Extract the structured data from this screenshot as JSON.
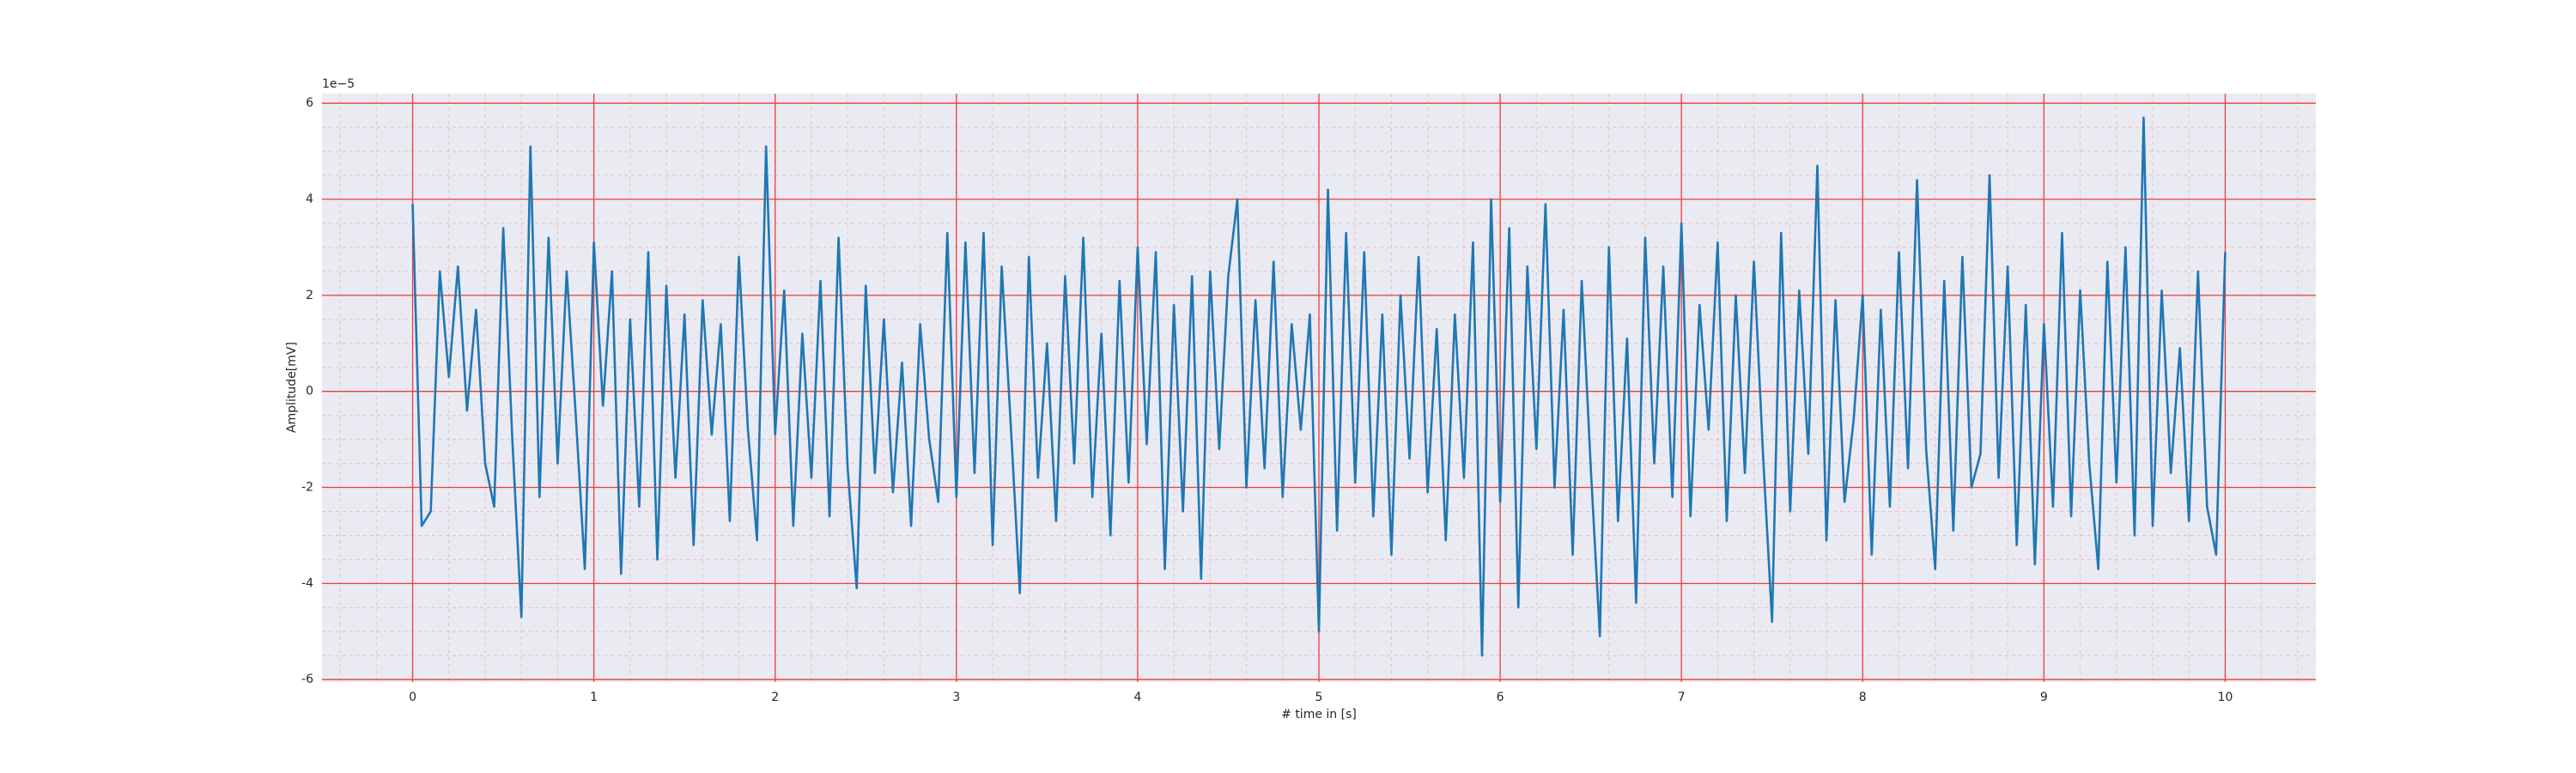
{
  "chart_data": {
    "type": "line",
    "xlabel": "# time in [s]",
    "ylabel": "Amplitude[mV]",
    "y_offset_text": "1e−5",
    "color": "#1f77b4",
    "background": "#eaeaf2",
    "grid": true,
    "grid_color": "#f03c3c",
    "minor_grid": true,
    "xlim": [
      -0.5,
      10.5
    ],
    "ylim": [
      -6.05,
      6.2
    ],
    "xticks": [
      0,
      1,
      2,
      3,
      4,
      5,
      6,
      7,
      8,
      9,
      10
    ],
    "yticks": [
      -6,
      -4,
      -2,
      0,
      2,
      4,
      6
    ],
    "x": [
      0,
      0.05,
      0.1,
      0.15,
      0.2,
      0.25,
      0.3,
      0.35,
      0.4,
      0.45,
      0.5,
      0.55,
      0.6,
      0.65,
      0.7,
      0.75,
      0.8,
      0.85,
      0.9,
      0.95,
      1,
      1.05,
      1.1,
      1.15,
      1.2,
      1.25,
      1.3,
      1.35,
      1.4,
      1.45,
      1.5,
      1.55,
      1.6,
      1.65,
      1.7,
      1.75,
      1.8,
      1.85,
      1.9,
      1.95,
      2,
      2.05,
      2.1,
      2.15,
      2.2,
      2.25,
      2.3,
      2.35,
      2.4,
      2.45,
      2.5,
      2.55,
      2.6,
      2.65,
      2.7,
      2.75,
      2.8,
      2.85,
      2.9,
      2.95,
      3,
      3.05,
      3.1,
      3.15,
      3.2,
      3.25,
      3.3,
      3.35,
      3.4,
      3.45,
      3.5,
      3.55,
      3.6,
      3.65,
      3.7,
      3.75,
      3.8,
      3.85,
      3.9,
      3.95,
      4,
      4.05,
      4.1,
      4.15,
      4.2,
      4.25,
      4.3,
      4.35,
      4.4,
      4.45,
      4.5,
      4.55,
      4.6,
      4.65,
      4.7,
      4.75,
      4.8,
      4.85,
      4.9,
      4.95,
      5,
      5.05,
      5.1,
      5.15,
      5.2,
      5.25,
      5.3,
      5.35,
      5.4,
      5.45,
      5.5,
      5.55,
      5.6,
      5.65,
      5.7,
      5.75,
      5.8,
      5.85,
      5.9,
      5.95,
      6,
      6.05,
      6.1,
      6.15,
      6.2,
      6.25,
      6.3,
      6.35,
      6.4,
      6.45,
      6.5,
      6.55,
      6.6,
      6.65,
      6.7,
      6.75,
      6.8,
      6.85,
      6.9,
      6.95,
      7,
      7.05,
      7.1,
      7.15,
      7.2,
      7.25,
      7.3,
      7.35,
      7.4,
      7.45,
      7.5,
      7.55,
      7.6,
      7.65,
      7.7,
      7.75,
      7.8,
      7.85,
      7.9,
      7.95,
      8,
      8.05,
      8.1,
      8.15,
      8.2,
      8.25,
      8.3,
      8.35,
      8.4,
      8.45,
      8.5,
      8.55,
      8.6,
      8.65,
      8.7,
      8.75,
      8.8,
      8.85,
      8.9,
      8.95,
      9,
      9.05,
      9.1,
      9.15,
      9.2,
      9.25,
      9.3,
      9.35,
      9.4,
      9.45,
      9.5,
      9.55,
      9.6,
      9.65,
      9.7,
      9.75,
      9.8,
      9.85,
      9.9,
      9.95,
      10
    ],
    "values": [
      3.9,
      -2.8,
      -2.5,
      2.5,
      0.3,
      2.6,
      -0.4,
      1.7,
      -1.5,
      -2.4,
      3.4,
      -1.0,
      -4.7,
      5.1,
      -2.2,
      3.2,
      -1.5,
      2.5,
      -0.5,
      -3.7,
      3.1,
      -0.3,
      2.5,
      -3.8,
      1.5,
      -2.4,
      2.9,
      -3.5,
      2.2,
      -1.8,
      1.6,
      -3.2,
      1.9,
      -0.9,
      1.4,
      -2.7,
      2.8,
      -0.8,
      -3.1,
      5.1,
      -0.9,
      2.1,
      -2.8,
      1.2,
      -1.8,
      2.3,
      -2.6,
      3.2,
      -1.6,
      -4.1,
      2.2,
      -1.7,
      1.5,
      -2.1,
      0.6,
      -2.8,
      1.4,
      -1.0,
      -2.3,
      3.3,
      -2.2,
      3.1,
      -1.7,
      3.3,
      -3.2,
      2.6,
      -0.7,
      -4.2,
      2.8,
      -1.8,
      1.0,
      -2.7,
      2.4,
      -1.5,
      3.2,
      -2.2,
      1.2,
      -3.0,
      2.3,
      -1.9,
      3.0,
      -1.1,
      2.9,
      -3.7,
      1.8,
      -2.5,
      2.4,
      -3.9,
      2.5,
      -1.2,
      2.4,
      4.0,
      -2.0,
      1.9,
      -1.6,
      2.7,
      -2.2,
      1.4,
      -0.8,
      1.6,
      -5.0,
      4.2,
      -2.9,
      3.3,
      -1.9,
      2.9,
      -2.6,
      1.6,
      -3.4,
      2.0,
      -1.4,
      2.8,
      -2.1,
      1.3,
      -3.1,
      1.6,
      -1.8,
      3.1,
      -5.5,
      4.0,
      -2.3,
      3.4,
      -4.5,
      2.6,
      -1.2,
      3.9,
      -2.0,
      1.7,
      -3.4,
      2.3,
      -1.6,
      -5.1,
      3.0,
      -2.7,
      1.1,
      -4.4,
      3.2,
      -1.5,
      2.6,
      -2.2,
      3.5,
      -2.6,
      1.8,
      -0.8,
      3.1,
      -2.7,
      2.0,
      -1.7,
      2.7,
      -1.3,
      -4.8,
      3.3,
      -2.5,
      2.1,
      -1.3,
      4.7,
      -3.1,
      1.9,
      -2.3,
      -0.6,
      2.0,
      -3.4,
      1.7,
      -2.4,
      2.9,
      -1.6,
      4.4,
      -1.2,
      -3.7,
      2.3,
      -2.9,
      2.8,
      -2.0,
      -1.3,
      4.5,
      -1.8,
      2.6,
      -3.2,
      1.8,
      -3.6,
      1.4,
      -2.4,
      3.3,
      -2.6,
      2.1,
      -1.5,
      -3.7,
      2.7,
      -1.9,
      3.0,
      -3.0,
      5.7,
      -2.8,
      2.1,
      -1.7,
      0.9,
      -2.7,
      2.5,
      -2.4,
      -3.4,
      2.9
    ]
  }
}
